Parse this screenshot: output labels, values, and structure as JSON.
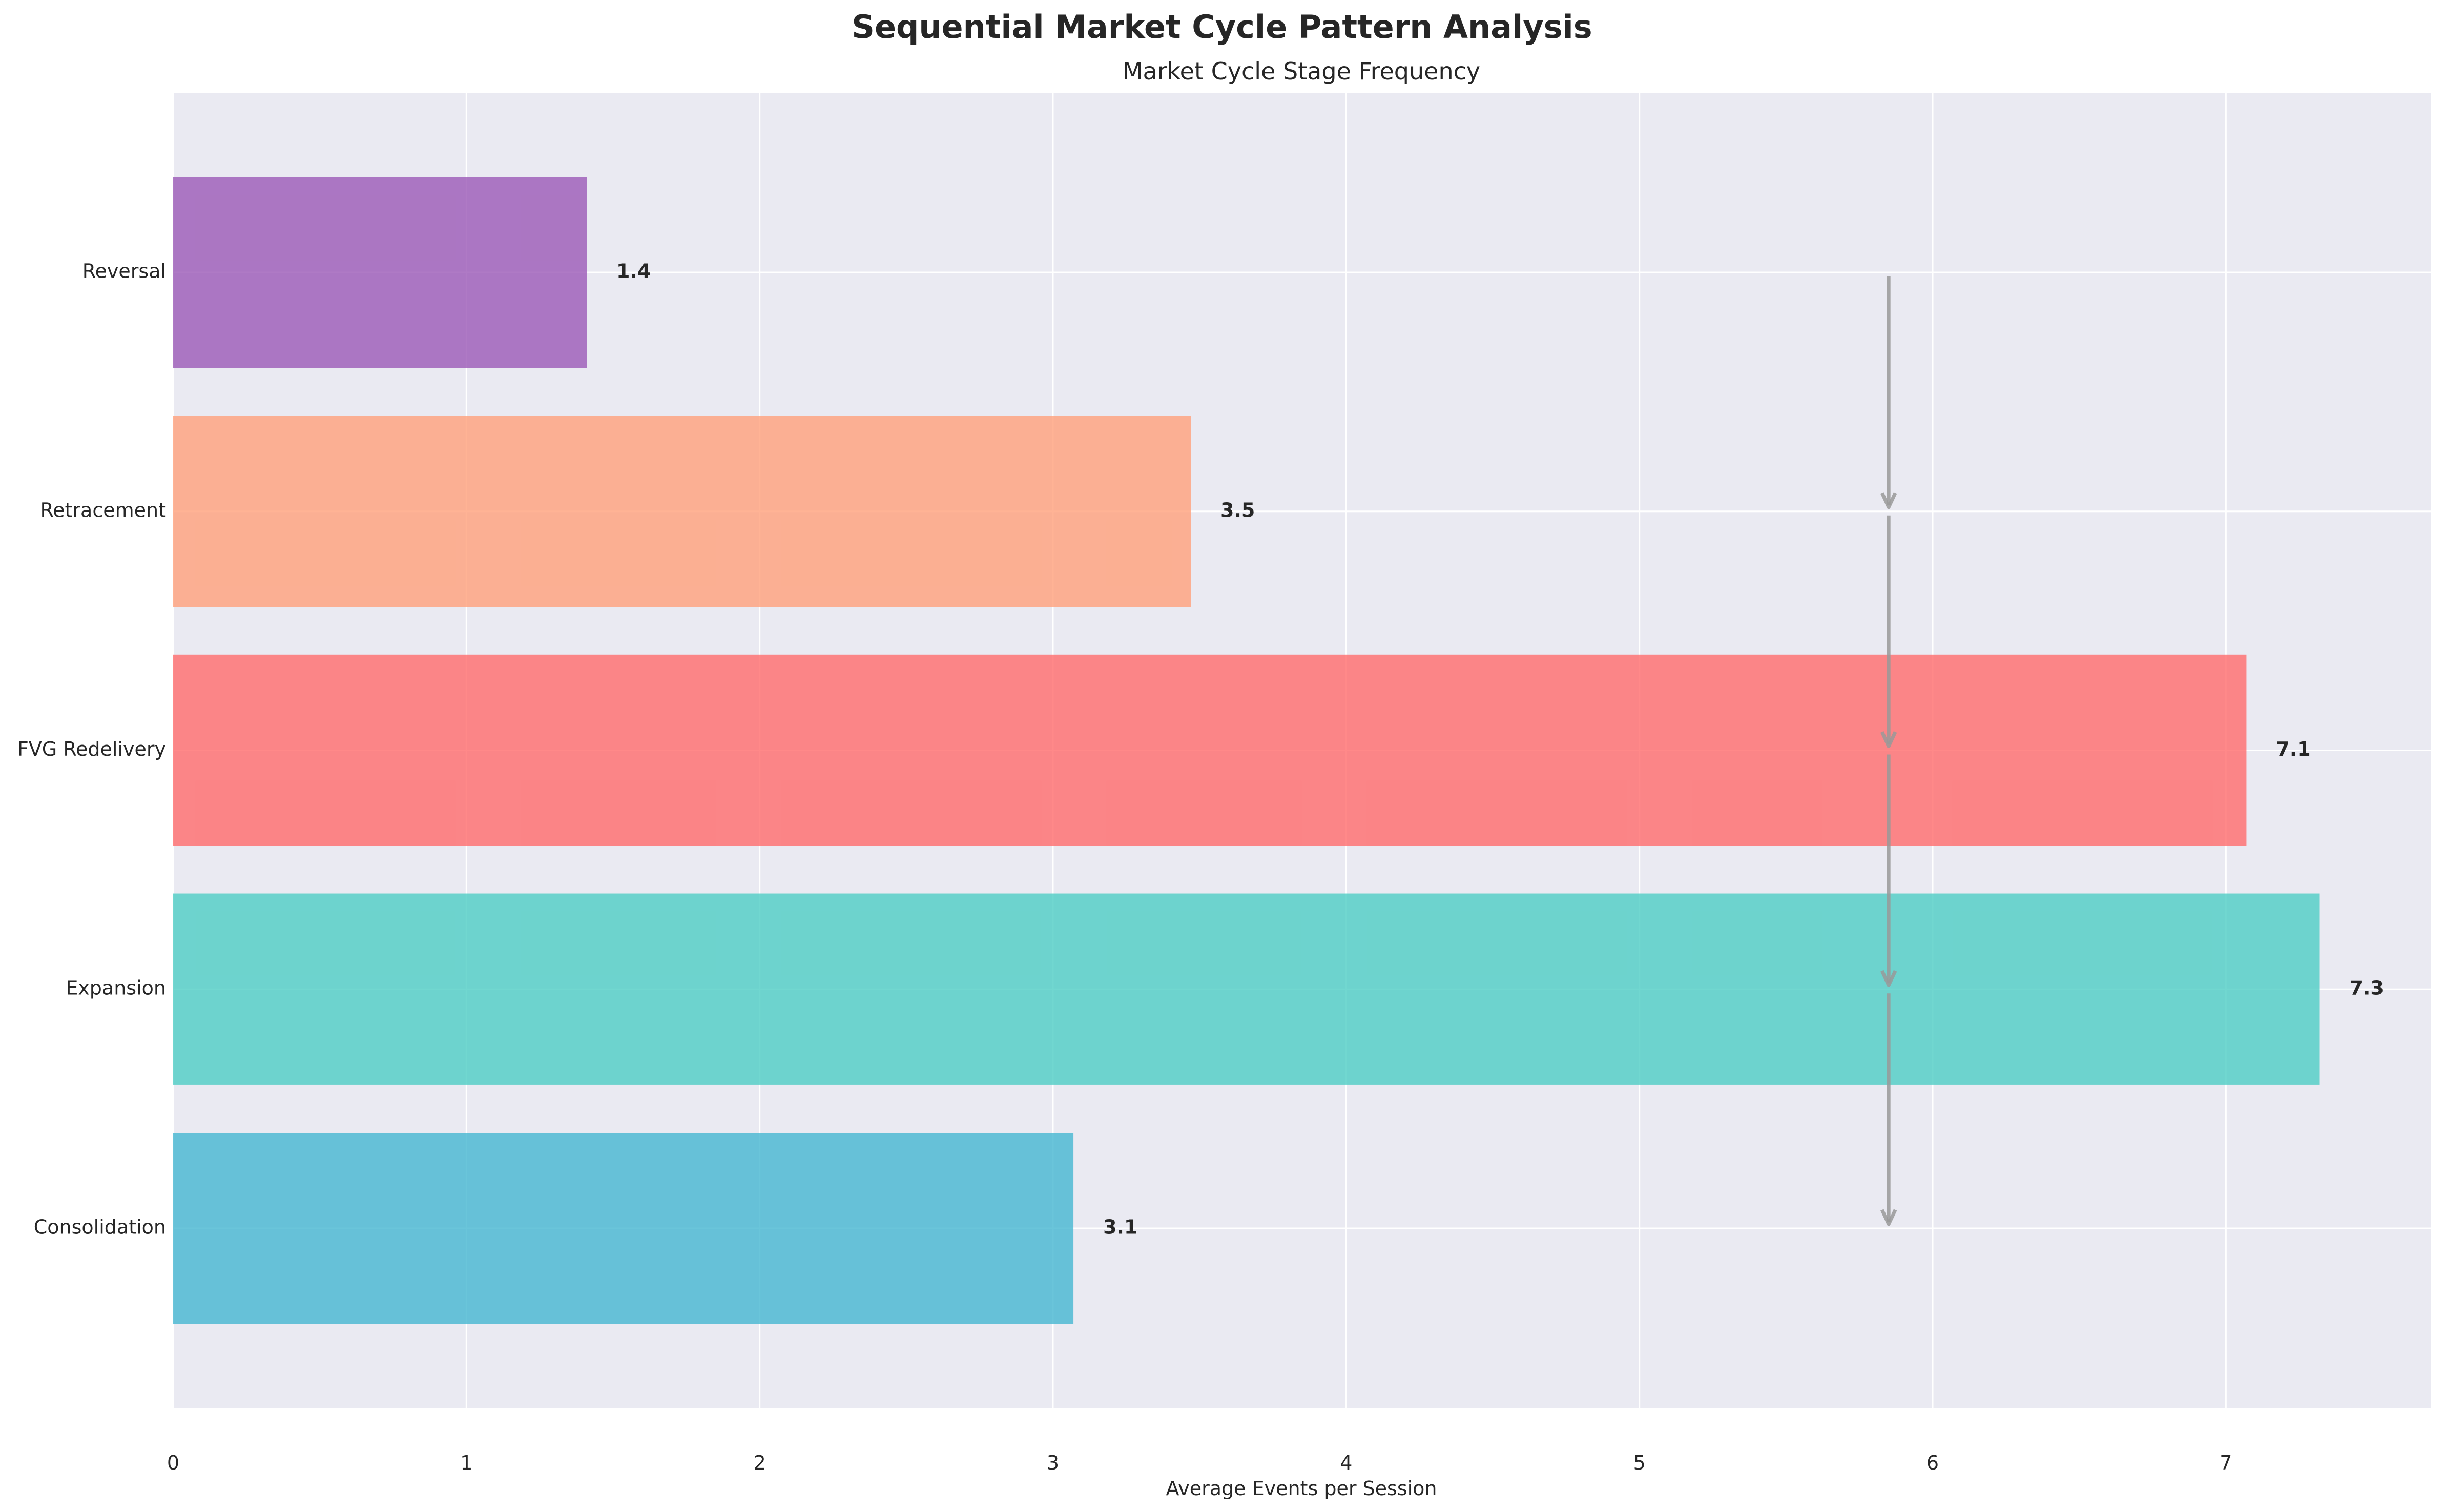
{
  "chart_data": {
    "type": "bar",
    "orientation": "horizontal",
    "title": "Sequential Market Cycle Pattern Analysis",
    "subtitle": "Market Cycle Stage Frequency",
    "xlabel": "Average Events per Session",
    "ylabel": "",
    "xlim": [
      0,
      7.7
    ],
    "xticks": [
      0,
      1,
      2,
      3,
      4,
      5,
      6,
      7
    ],
    "grid": true,
    "categories": [
      "Consolidation",
      "Expansion",
      "FVG Redelivery",
      "Retracement",
      "Reversal"
    ],
    "values": [
      3.07,
      7.32,
      7.07,
      3.47,
      1.41
    ],
    "value_labels": [
      "3.1",
      "7.3",
      "7.1",
      "3.5",
      "1.4"
    ],
    "colors": [
      "#45B7D1",
      "#4ECDC4",
      "#FF6B6B",
      "#FFA07A",
      "#9B59B6"
    ],
    "sequence_arrows": {
      "x": 5.85,
      "from": [
        "Reversal",
        "Retracement",
        "FVG Redelivery",
        "Expansion"
      ],
      "to": [
        "Retracement",
        "FVG Redelivery",
        "Expansion",
        "Consolidation"
      ],
      "color": "#999999"
    }
  }
}
